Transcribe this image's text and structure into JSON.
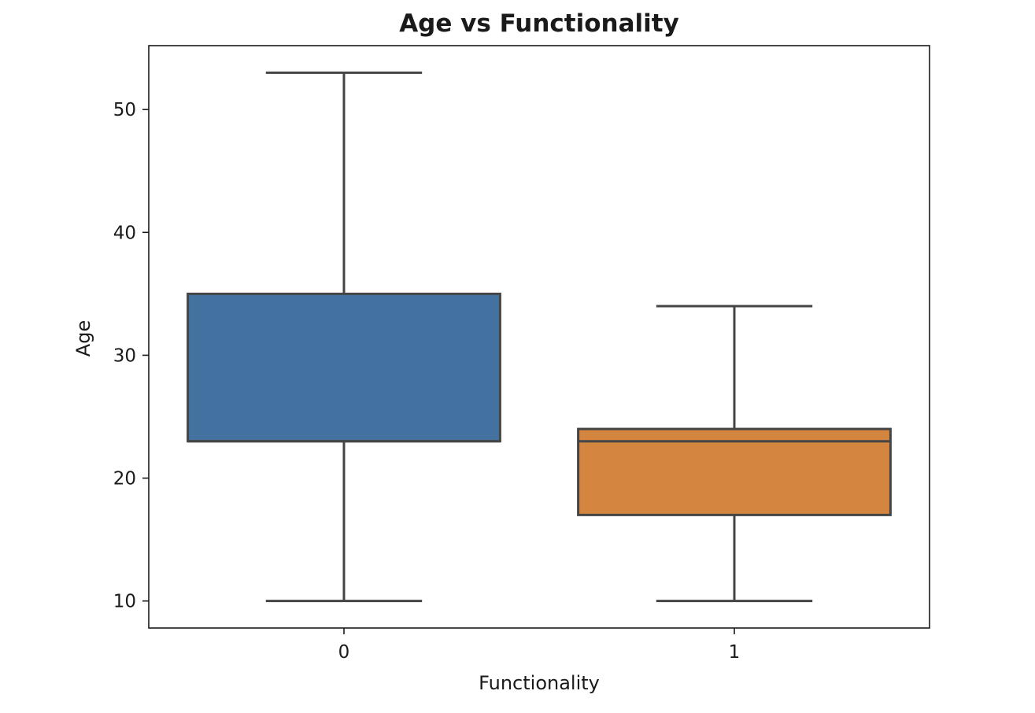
{
  "chart_data": {
    "type": "box",
    "title": "Age vs Functionality",
    "xlabel": "Functionality",
    "ylabel": "Age",
    "categories": [
      "0",
      "1"
    ],
    "boxes": [
      {
        "category": "0",
        "whisker_low": 10,
        "q1": 23,
        "median": 23,
        "q3": 35,
        "whisker_high": 53,
        "color": "#4472a0"
      },
      {
        "category": "1",
        "whisker_low": 10,
        "q1": 17,
        "median": 23,
        "q3": 24,
        "whisker_high": 34,
        "color": "#d48540"
      }
    ],
    "ylim": [
      7.8,
      55.2
    ],
    "yticks": [
      10,
      20,
      30,
      40,
      50
    ],
    "grid": false,
    "edge_color": "#454545"
  }
}
